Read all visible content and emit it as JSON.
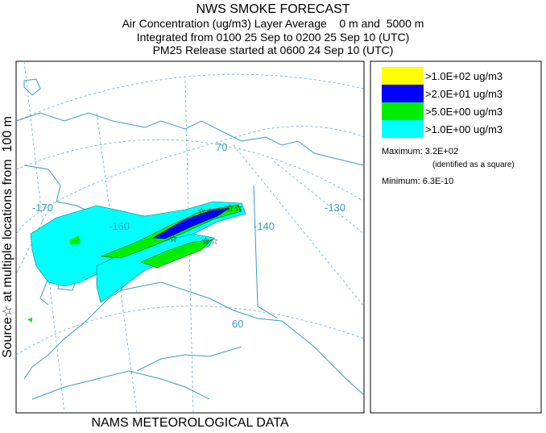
{
  "header": {
    "title": "NWS SMOKE FORECAST",
    "lines": [
      "Air Concentration (ug/m3) Layer Average    0 m and  5000 m",
      "Integrated from 0100 25 Sep to 0200 25 Sep 10 (UTC)",
      "PM25 Release started at 0600 24 Sep 10 (UTC)"
    ]
  },
  "side_label": "Source☆ at multiple locations from  100 m",
  "footer": "NAMS METEOROLOGICAL DATA",
  "map_labels": [
    "-170",
    "-160",
    "-140",
    "-130",
    "70",
    "60"
  ],
  "legend": {
    "items": [
      {
        "label": ">1.0E+02 ug/m3",
        "color": "#ffff00"
      },
      {
        "label": ">2.0E+01 ug/m3",
        "color": "#0000ff"
      },
      {
        "label": ">5.0E+00 ug/m3",
        "color": "#00ee00"
      },
      {
        "label": ">1.0E+00 ug/m3",
        "color": "#00ffff"
      }
    ],
    "maximum": "Maximum: 3.2E+02",
    "maximum_note": "(identified as a square)",
    "minimum": "Minimum: 6.3E-10"
  }
}
